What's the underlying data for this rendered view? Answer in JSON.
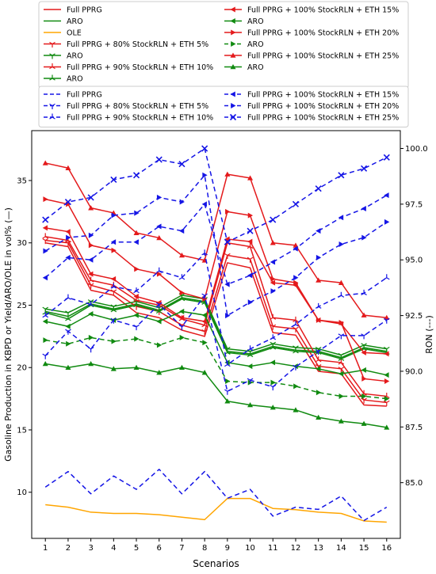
{
  "chart_data": {
    "type": "line",
    "xlabel": "Scenarios",
    "ylabel": "Gasoline Production in KBPD or Yield/ARO/OLE in vol% (—)",
    "y2label": "RON (---)",
    "x": [
      1,
      2,
      3,
      4,
      5,
      6,
      7,
      8,
      9,
      10,
      11,
      12,
      13,
      14,
      15,
      16
    ],
    "xlim": [
      0.4,
      16.6
    ],
    "ylim": [
      6.3,
      39
    ],
    "y2lim": [
      82.5,
      100.8
    ],
    "yticks": [
      10,
      15,
      20,
      25,
      30,
      35
    ],
    "y2ticks": [
      85.0,
      87.5,
      90.0,
      92.5,
      95.0,
      97.5,
      100.0
    ],
    "legend_placement": "top, above plot",
    "colors": {
      "red": "#e41a1c",
      "green": "#108a10",
      "orange": "#ffa500",
      "blue": "#1515e6",
      "axis": "#000000"
    },
    "legend1": [
      {
        "label": "Full PPRG",
        "color": "#e41a1c",
        "marker": "none",
        "dash": "solid"
      },
      {
        "label": "ARO",
        "color": "#108a10",
        "marker": "none",
        "dash": "solid"
      },
      {
        "label": "OLE",
        "color": "#ffa500",
        "marker": "none",
        "dash": "solid"
      },
      {
        "label": "Full PPRG + 80% StockRLN + ETH 5%",
        "color": "#e41a1c",
        "marker": "tri_down",
        "dash": "solid"
      },
      {
        "label": "ARO",
        "color": "#108a10",
        "marker": "tri_down",
        "dash": "solid"
      },
      {
        "label": "Full PPRG + 90% StockRLN + ETH 10%",
        "color": "#e41a1c",
        "marker": "tri_up",
        "dash": "solid"
      },
      {
        "label": "ARO",
        "color": "#108a10",
        "marker": "tri_up",
        "dash": "solid"
      },
      {
        "label": "Full PPRG + 100% StockRLN + ETH 15%",
        "color": "#e41a1c",
        "marker": "left",
        "dash": "solid"
      },
      {
        "label": "ARO",
        "color": "#108a10",
        "marker": "left",
        "dash": "solid"
      },
      {
        "label": "Full PPRG + 100% StockRLN + ETH 20%",
        "color": "#e41a1c",
        "marker": "right",
        "dash": "solid"
      },
      {
        "label": "ARO",
        "color": "#108a10",
        "marker": "right",
        "dash": "dashed"
      },
      {
        "label": "Full PPRG + 100% StockRLN + ETH 25%",
        "color": "#e41a1c",
        "marker": "triangle",
        "dash": "solid"
      },
      {
        "label": "ARO",
        "color": "#108a10",
        "marker": "triangle",
        "dash": "solid"
      }
    ],
    "legend2": [
      {
        "label": "Full PPRG",
        "color": "#1515e6",
        "marker": "none"
      },
      {
        "label": "Full PPRG + 80% StockRLN + ETH 5%",
        "color": "#1515e6",
        "marker": "tri_down"
      },
      {
        "label": "Full PPRG + 90% StockRLN + ETH 10%",
        "color": "#1515e6",
        "marker": "tri_up"
      },
      {
        "label": "Full PPRG + 100% StockRLN + ETH 15%",
        "color": "#1515e6",
        "marker": "left"
      },
      {
        "label": "Full PPRG + 100% StockRLN + ETH 20%",
        "color": "#1515e6",
        "marker": "right"
      },
      {
        "label": "Full PPRG + 100% StockRLN + ETH 25%",
        "color": "#1515e6",
        "marker": "x"
      }
    ],
    "series": [
      {
        "name": "Full PPRG",
        "axis": "left",
        "color": "#e41a1c",
        "dash": "solid",
        "marker": "none",
        "values": [
          30.0,
          29.7,
          26.2,
          25.8,
          24.4,
          24.0,
          23.0,
          22.5,
          28.4,
          28.0,
          22.8,
          22.6,
          19.7,
          19.5,
          17.0,
          16.9
        ]
      },
      {
        "name": "ARO",
        "axis": "left",
        "color": "#108a10",
        "dash": "solid",
        "marker": "none",
        "values": [
          24.5,
          24.1,
          25.1,
          24.7,
          25.1,
          24.6,
          25.6,
          25.3,
          21.3,
          21.1,
          21.7,
          21.4,
          21.3,
          20.8,
          21.6,
          21.3
        ]
      },
      {
        "name": "OLE",
        "axis": "left",
        "color": "#ffa500",
        "dash": "solid",
        "marker": "none",
        "values": [
          9.0,
          8.8,
          8.4,
          8.3,
          8.3,
          8.2,
          8.0,
          7.8,
          9.5,
          9.5,
          8.7,
          8.6,
          8.4,
          8.3,
          7.7,
          7.6
        ]
      },
      {
        "name": "Full PPRG + 80% StockRLN + ETH 5%",
        "axis": "left",
        "color": "#e41a1c",
        "dash": "solid",
        "marker": "tri_down",
        "values": [
          30.2,
          30.0,
          26.6,
          26.1,
          24.9,
          24.5,
          23.4,
          22.9,
          29.0,
          28.7,
          23.3,
          23.1,
          20.1,
          19.9,
          17.4,
          17.2
        ]
      },
      {
        "name": "ARO",
        "axis": "left",
        "color": "#108a10",
        "dash": "solid",
        "marker": "tri_down",
        "values": [
          24.7,
          24.4,
          25.3,
          24.9,
          25.3,
          24.8,
          25.8,
          25.5,
          21.5,
          21.3,
          21.9,
          21.6,
          21.5,
          21.0,
          21.8,
          21.5
        ]
      },
      {
        "name": "Full PPRG + 90% StockRLN + ETH 10%",
        "axis": "left",
        "color": "#e41a1c",
        "dash": "solid",
        "marker": "tri_up",
        "values": [
          30.5,
          30.2,
          27.0,
          26.6,
          25.4,
          25.0,
          23.9,
          23.4,
          30.0,
          29.7,
          24.0,
          23.8,
          20.6,
          20.4,
          17.9,
          17.7
        ]
      },
      {
        "name": "ARO",
        "axis": "left",
        "color": "#108a10",
        "dash": "solid",
        "marker": "tri_up",
        "values": [
          24.4,
          23.9,
          25.0,
          24.6,
          25.0,
          24.5,
          25.5,
          25.2,
          21.2,
          21.0,
          21.6,
          21.3,
          21.2,
          20.7,
          21.5,
          21.2
        ]
      },
      {
        "name": "Full PPRG + 100% StockRLN + ETH 15%",
        "axis": "left",
        "color": "#e41a1c",
        "dash": "solid",
        "marker": "left",
        "values": [
          31.2,
          30.9,
          27.5,
          27.1,
          25.7,
          25.2,
          24.0,
          23.7,
          30.3,
          30.1,
          26.8,
          26.6,
          23.8,
          23.5,
          21.2,
          21.1
        ]
      },
      {
        "name": "ARO",
        "axis": "left",
        "color": "#108a10",
        "dash": "solid",
        "marker": "left",
        "values": [
          23.7,
          23.3,
          24.3,
          23.8,
          24.2,
          23.7,
          24.5,
          24.2,
          20.4,
          20.1,
          20.4,
          20.1,
          19.9,
          19.5,
          19.8,
          19.4
        ]
      },
      {
        "name": "Full PPRG + 100% StockRLN + ETH 20%",
        "axis": "left",
        "color": "#e41a1c",
        "dash": "solid",
        "marker": "right",
        "values": [
          33.5,
          33.1,
          29.8,
          29.4,
          27.9,
          27.5,
          26.0,
          25.5,
          32.5,
          32.2,
          27.1,
          26.8,
          23.8,
          23.6,
          19.1,
          18.9
        ]
      },
      {
        "name": "ARO",
        "axis": "left",
        "color": "#108a10",
        "dash": "dashed",
        "marker": "right",
        "values": [
          22.2,
          21.9,
          22.4,
          22.1,
          22.3,
          21.8,
          22.4,
          22.0,
          18.9,
          18.8,
          18.8,
          18.5,
          18.0,
          17.7,
          17.7,
          17.5
        ]
      },
      {
        "name": "Full PPRG + 100% StockRLN + ETH 25%",
        "axis": "left",
        "color": "#e41a1c",
        "dash": "solid",
        "marker": "triangle",
        "values": [
          36.4,
          36.0,
          32.8,
          32.4,
          30.8,
          30.4,
          29.0,
          28.6,
          35.5,
          35.2,
          30.0,
          29.8,
          27.0,
          26.8,
          24.2,
          24.0
        ]
      },
      {
        "name": "ARO",
        "axis": "left",
        "color": "#108a10",
        "dash": "solid",
        "marker": "triangle",
        "values": [
          20.3,
          20.0,
          20.3,
          19.9,
          20.0,
          19.6,
          20.0,
          19.6,
          17.3,
          17.0,
          16.8,
          16.6,
          16.0,
          15.7,
          15.5,
          15.2
        ]
      },
      {
        "name": "Full PPRG",
        "axis": "right",
        "color": "#1515e6",
        "dash": "dashed",
        "marker": "none",
        "values": [
          84.8,
          85.5,
          84.5,
          85.3,
          84.7,
          85.6,
          84.5,
          85.5,
          84.3,
          84.7,
          83.5,
          83.9,
          83.8,
          84.4,
          83.3,
          83.9
        ]
      },
      {
        "name": "Full PPRG + 80% StockRLN + ETH 5%",
        "axis": "right",
        "color": "#1515e6",
        "dash": "dashed",
        "marker": "tri_down",
        "values": [
          90.7,
          91.8,
          91.0,
          92.3,
          92.0,
          93.0,
          92.0,
          93.4,
          89.1,
          89.6,
          89.3,
          90.2,
          90.9,
          91.6,
          91.6,
          92.3
        ]
      },
      {
        "name": "Full PPRG + 90% StockRLN + ETH 10%",
        "axis": "right",
        "color": "#1515e6",
        "dash": "dashed",
        "marker": "tri_up",
        "values": [
          92.5,
          93.3,
          93.0,
          93.8,
          93.6,
          94.5,
          94.2,
          95.3,
          90.3,
          91.0,
          91.5,
          92.1,
          92.9,
          93.4,
          93.5,
          94.2
        ]
      },
      {
        "name": "Full PPRG + 100% StockRLN + ETH 15%",
        "axis": "right",
        "color": "#1515e6",
        "dash": "dashed",
        "marker": "left",
        "values": [
          94.2,
          95.1,
          95.0,
          95.8,
          95.8,
          96.5,
          96.3,
          97.5,
          93.9,
          94.3,
          94.9,
          95.5,
          96.3,
          96.9,
          97.3,
          97.9
        ]
      },
      {
        "name": "Full PPRG + 100% StockRLN + ETH 20%",
        "axis": "right",
        "color": "#1515e6",
        "dash": "dashed",
        "marker": "right",
        "values": [
          95.4,
          96.0,
          96.1,
          97.0,
          97.1,
          97.8,
          97.6,
          98.8,
          92.5,
          93.1,
          93.6,
          94.2,
          95.1,
          95.7,
          96.0,
          96.7
        ]
      },
      {
        "name": "Full PPRG + 100% StockRLN + ETH 25%",
        "axis": "right",
        "color": "#1515e6",
        "dash": "dashed",
        "marker": "x",
        "values": [
          96.8,
          97.6,
          97.8,
          98.6,
          98.8,
          99.5,
          99.3,
          100.0,
          95.8,
          96.3,
          96.8,
          97.5,
          98.2,
          98.8,
          99.1,
          99.6
        ]
      }
    ]
  }
}
